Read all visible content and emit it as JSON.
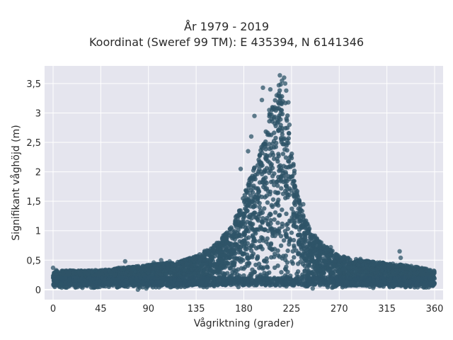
{
  "chart_data": {
    "type": "scatter",
    "title_lines": [
      "År 1979 - 2019",
      "Koordinat (Sweref 99 TM): E 435394, N 6141346"
    ],
    "xlabel": "Vågriktning (grader)",
    "ylabel": "Signifikant våghöjd (m)",
    "xlim": [
      -8,
      368
    ],
    "ylim": [
      -0.17,
      3.8
    ],
    "xticks": [
      0,
      45,
      90,
      135,
      180,
      225,
      270,
      315,
      360
    ],
    "xtick_labels": [
      "0",
      "45",
      "90",
      "135",
      "180",
      "225",
      "270",
      "315",
      "360"
    ],
    "yticks": [
      0,
      0.5,
      1,
      1.5,
      2,
      2.5,
      3,
      3.5
    ],
    "ytick_labels": [
      "0",
      "0,5",
      "1",
      "1,5",
      "2",
      "2,5",
      "3",
      "3,5"
    ],
    "grid": true,
    "legend": "none",
    "marker_color": "#2e5468",
    "plot_bg": "#e5e5ee",
    "envelope": {
      "x": [
        0,
        45,
        90,
        120,
        135,
        150,
        165,
        175,
        185,
        195,
        200,
        205,
        210,
        215,
        220,
        225,
        230,
        240,
        250,
        260,
        270,
        290,
        315,
        340,
        360
      ],
      "y_max": [
        0.32,
        0.33,
        0.42,
        0.48,
        0.58,
        0.72,
        1.0,
        1.35,
        1.85,
        2.3,
        2.7,
        3.05,
        3.3,
        3.5,
        3.15,
        2.4,
        1.7,
        1.1,
        0.85,
        0.7,
        0.58,
        0.5,
        0.45,
        0.4,
        0.32
      ]
    },
    "outliers": [
      {
        "x": 214,
        "y": 3.64
      },
      {
        "x": 218,
        "y": 3.6
      },
      {
        "x": 216,
        "y": 3.55
      },
      {
        "x": 219,
        "y": 3.5
      },
      {
        "x": 213,
        "y": 3.47
      },
      {
        "x": 198,
        "y": 3.43
      },
      {
        "x": 205,
        "y": 3.4
      },
      {
        "x": 220,
        "y": 3.38
      },
      {
        "x": 211,
        "y": 3.3
      },
      {
        "x": 197,
        "y": 3.22
      },
      {
        "x": 222,
        "y": 3.18
      },
      {
        "x": 204,
        "y": 3.05
      },
      {
        "x": 190,
        "y": 2.95
      },
      {
        "x": 223,
        "y": 2.8
      },
      {
        "x": 187,
        "y": 2.6
      },
      {
        "x": 184,
        "y": 2.35
      },
      {
        "x": 177,
        "y": 2.05
      },
      {
        "x": 236,
        "y": 1.45
      },
      {
        "x": 240,
        "y": 1.12
      },
      {
        "x": 253,
        "y": 0.8
      },
      {
        "x": 262,
        "y": 0.72
      },
      {
        "x": 290,
        "y": 0.52
      },
      {
        "x": 306,
        "y": 0.46
      },
      {
        "x": 327,
        "y": 0.65
      },
      {
        "x": 328,
        "y": 0.54
      },
      {
        "x": 338,
        "y": 0.4
      },
      {
        "x": 62,
        "y": 0.37
      },
      {
        "x": 68,
        "y": 0.48
      },
      {
        "x": 76,
        "y": 0.36
      },
      {
        "x": 95,
        "y": 0.46
      },
      {
        "x": 102,
        "y": 0.5
      },
      {
        "x": 110,
        "y": 0.48
      },
      {
        "x": 0,
        "y": 0.37
      },
      {
        "x": 3,
        "y": 0.33
      },
      {
        "x": 40,
        "y": 0.33
      },
      {
        "x": 355,
        "y": 0.33
      },
      {
        "x": 7,
        "y": 0.08
      },
      {
        "x": 80,
        "y": 0.0
      },
      {
        "x": 88,
        "y": 0.02
      },
      {
        "x": 245,
        "y": 0.02
      }
    ]
  }
}
